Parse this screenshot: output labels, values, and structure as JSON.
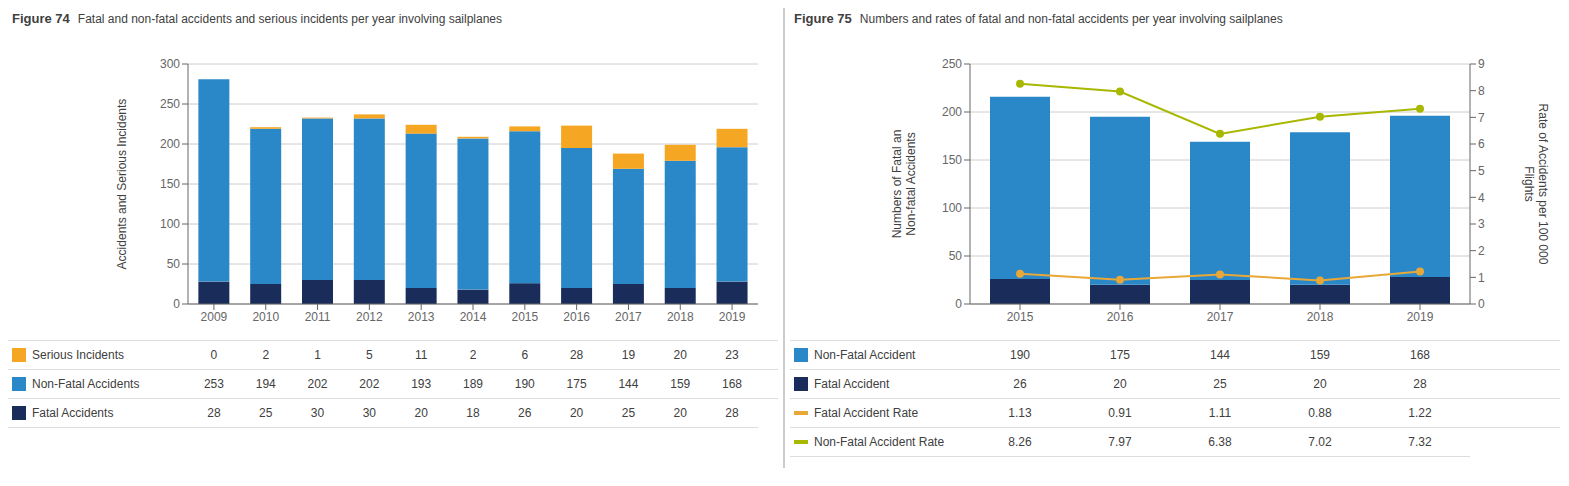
{
  "chart_data": [
    {
      "type": "bar",
      "stacked": true,
      "title": "Figure 74",
      "subtitle": "Fatal and non-fatal accidents and serious incidents per year involving sailplanes",
      "categories": [
        "2009",
        "2010",
        "2011",
        "2012",
        "2013",
        "2014",
        "2015",
        "2016",
        "2017",
        "2018",
        "2019"
      ],
      "series": [
        {
          "name": "Fatal Accidents",
          "color": "#1A2D5A",
          "values": [
            28,
            25,
            30,
            30,
            20,
            18,
            26,
            20,
            25,
            20,
            28
          ]
        },
        {
          "name": "Non-Fatal Accidents",
          "color": "#2B88C8",
          "values": [
            253,
            194,
            202,
            202,
            193,
            189,
            190,
            175,
            144,
            159,
            168
          ]
        },
        {
          "name": "Serious Incidents",
          "color": "#F5A623",
          "values": [
            0,
            2,
            1,
            5,
            11,
            2,
            6,
            28,
            19,
            20,
            23
          ]
        }
      ],
      "ylabel": "Accidents and Serious Incidents",
      "ylim": [
        0,
        300
      ],
      "yticks": [
        0,
        50,
        100,
        150,
        200,
        250,
        300
      ],
      "grid": true,
      "legend": "bottom"
    },
    {
      "type": "bar",
      "stacked": true,
      "title": "Figure 75",
      "subtitle": "Numbers and rates of fatal and non-fatal accidents per year involving sailplanes",
      "categories": [
        "2015",
        "2016",
        "2017",
        "2018",
        "2019"
      ],
      "series": [
        {
          "name": "Fatal Accident",
          "color": "#1A2D5A",
          "values": [
            26,
            20,
            25,
            20,
            28
          ]
        },
        {
          "name": "Non-Fatal Accident",
          "color": "#2B88C8",
          "values": [
            190,
            175,
            144,
            159,
            168
          ]
        },
        {
          "name": "Fatal Accident Rate",
          "type": "line",
          "axis": "y2",
          "marker": "circle",
          "color": "#E8A838",
          "values": [
            1.13,
            0.91,
            1.11,
            0.88,
            1.22
          ]
        },
        {
          "name": "Non-Fatal Accident Rate",
          "type": "line",
          "axis": "y2",
          "marker": "circle",
          "color": "#A8B800",
          "values": [
            8.26,
            7.97,
            6.38,
            7.02,
            7.32
          ]
        }
      ],
      "ylabel": "Numbers of Fatal an\nNon-fatal Accidents",
      "y2label": "Rate of Accidents per 100 000\nFlights",
      "ylim": [
        0,
        250
      ],
      "yticks": [
        0,
        50,
        100,
        150,
        200,
        250
      ],
      "y2lim": [
        0,
        9
      ],
      "y2ticks": [
        0,
        1,
        2,
        3,
        4,
        5,
        6,
        7,
        8,
        9
      ],
      "grid": true,
      "legend": "bottom"
    }
  ]
}
